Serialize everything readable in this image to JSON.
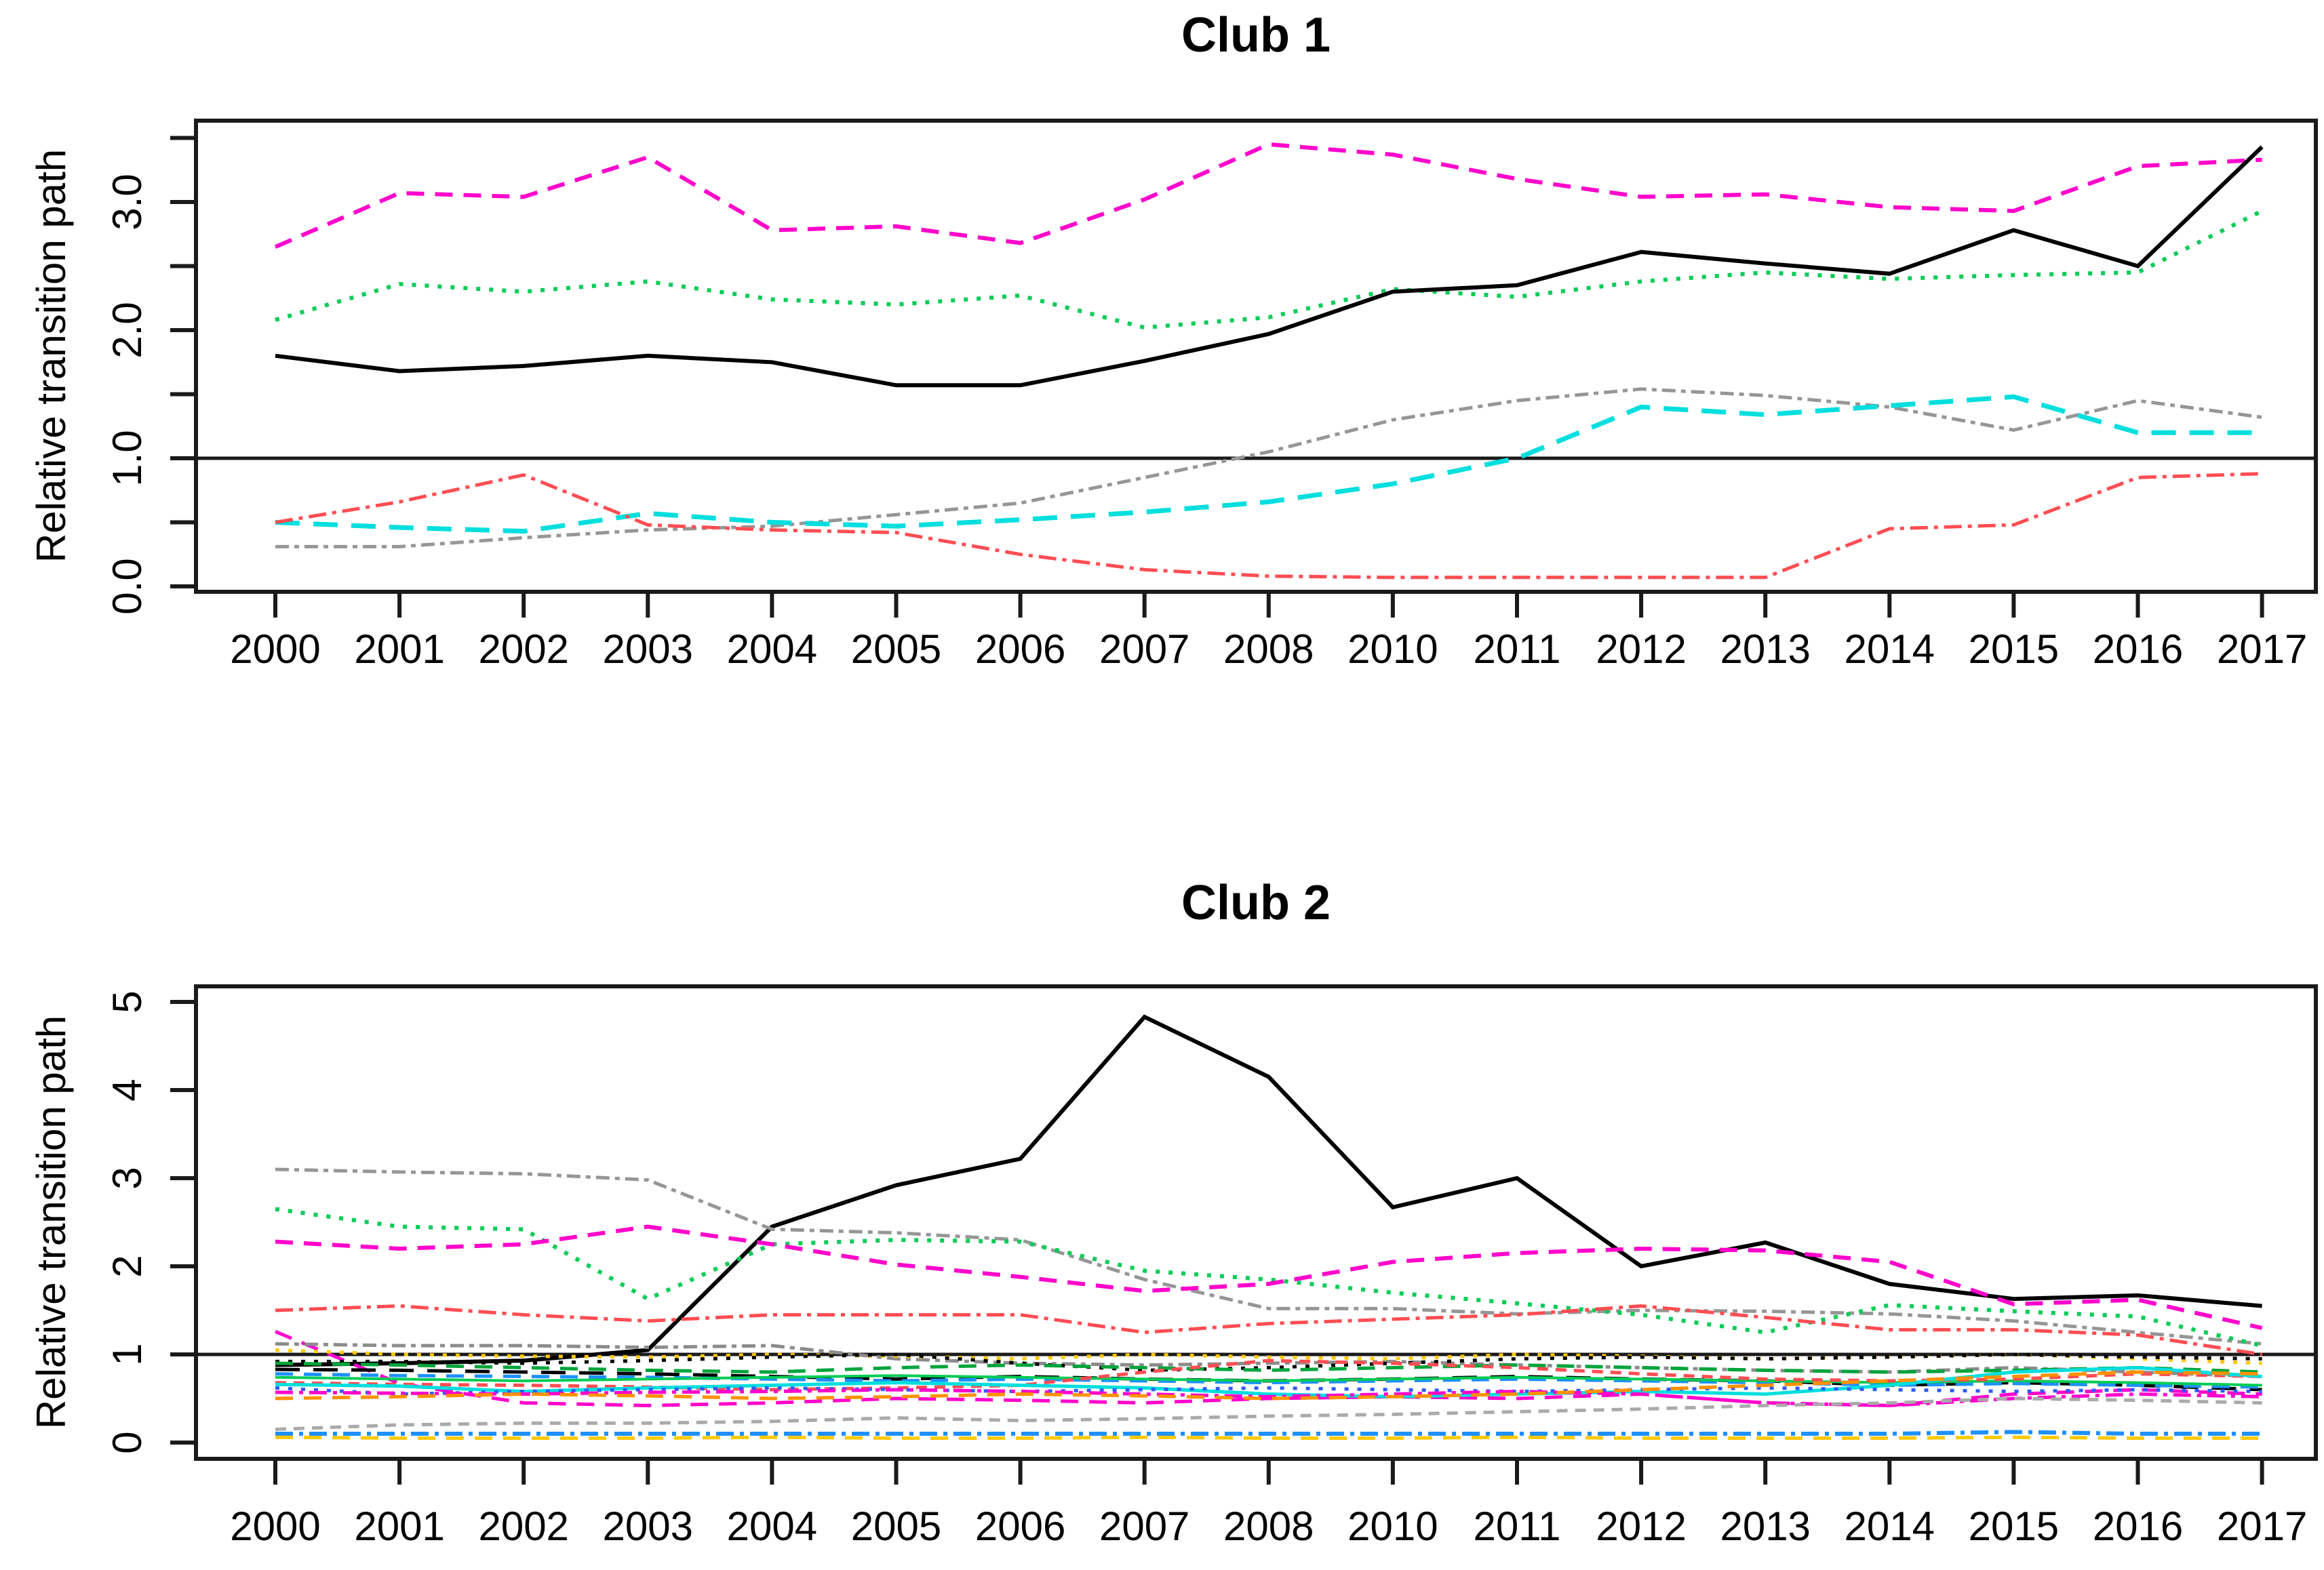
{
  "page": {
    "background": "#ffffff",
    "text_color": "#000000"
  },
  "chart_data": [
    {
      "type": "line",
      "title": "Club 1",
      "ylabel": "Relative transition path",
      "xlabel": "",
      "x_tick_labels": [
        "2000",
        "2001",
        "2002",
        "2003",
        "2004",
        "2005",
        "2006",
        "2007",
        "2008",
        "2010",
        "2011",
        "2012",
        "2013",
        "2014",
        "2015",
        "2016",
        "2017"
      ],
      "ylim": [
        0,
        3.6
      ],
      "y_ticks": [
        {
          "v": 0.0,
          "label": "0.0"
        },
        {
          "v": 0.5
        },
        {
          "v": 1.0,
          "label": "1.0"
        },
        {
          "v": 1.5
        },
        {
          "v": 2.0,
          "label": "2.0"
        },
        {
          "v": 2.5
        },
        {
          "v": 3.0,
          "label": "3.0"
        },
        {
          "v": 3.5
        }
      ],
      "reference_line_y": 1.0,
      "grid": false,
      "legend_position": "none",
      "series": [
        {
          "name": "magenta-dashed",
          "color": "#ff00cc",
          "dash": "dashed",
          "width": 6,
          "values": [
            2.65,
            3.07,
            3.04,
            3.35,
            2.78,
            2.81,
            2.68,
            3.02,
            3.45,
            3.37,
            3.18,
            3.04,
            3.06,
            2.96,
            2.93,
            3.28,
            3.33
          ]
        },
        {
          "name": "green-dotted",
          "color": "#00cc55",
          "dash": "dotted",
          "width": 6,
          "values": [
            2.08,
            2.36,
            2.3,
            2.38,
            2.24,
            2.2,
            2.27,
            2.02,
            2.1,
            2.32,
            2.26,
            2.38,
            2.45,
            2.4,
            2.43,
            2.45,
            2.93
          ]
        },
        {
          "name": "black-solid",
          "color": "#000000",
          "dash": "solid",
          "width": 6,
          "values": [
            1.8,
            1.68,
            1.72,
            1.8,
            1.75,
            1.57,
            1.57,
            1.76,
            1.97,
            2.3,
            2.35,
            2.61,
            2.52,
            2.44,
            2.78,
            2.5,
            3.43
          ]
        },
        {
          "name": "gray-dash-dot",
          "color": "#969696",
          "dash": "twodash",
          "width": 5,
          "values": [
            0.31,
            0.31,
            0.38,
            0.44,
            0.47,
            0.56,
            0.65,
            0.85,
            1.05,
            1.3,
            1.45,
            1.54,
            1.49,
            1.4,
            1.22,
            1.45,
            1.32
          ]
        },
        {
          "name": "cyan-long-dash",
          "color": "#00dede",
          "dash": "longdash",
          "width": 7,
          "values": [
            0.5,
            0.46,
            0.43,
            0.57,
            0.5,
            0.47,
            0.52,
            0.58,
            0.66,
            0.8,
            1.0,
            1.4,
            1.34,
            1.41,
            1.48,
            1.2,
            1.2
          ]
        },
        {
          "name": "red-dash-dot",
          "color": "#ff4d52",
          "dash": "dashdot",
          "width": 5,
          "values": [
            0.5,
            0.66,
            0.87,
            0.48,
            0.44,
            0.42,
            0.25,
            0.13,
            0.08,
            0.07,
            0.07,
            0.07,
            0.07,
            0.45,
            0.48,
            0.85,
            0.88
          ]
        }
      ]
    },
    {
      "type": "line",
      "title": "Club 2",
      "ylabel": "Relative transition path",
      "xlabel": "",
      "x_tick_labels": [
        "2000",
        "2001",
        "2002",
        "2003",
        "2004",
        "2005",
        "2006",
        "2007",
        "2008",
        "2010",
        "2011",
        "2012",
        "2013",
        "2014",
        "2015",
        "2016",
        "2017"
      ],
      "ylim": [
        0,
        5
      ],
      "y_ticks": [
        {
          "v": 0,
          "label": "0"
        },
        {
          "v": 1,
          "label": "1"
        },
        {
          "v": 2,
          "label": "2"
        },
        {
          "v": 3,
          "label": "3"
        },
        {
          "v": 4,
          "label": "4"
        },
        {
          "v": 5,
          "label": "5"
        }
      ],
      "reference_line_y": 1.0,
      "grid": false,
      "legend_position": "none",
      "series": [
        {
          "name": "black-solid",
          "color": "#000000",
          "dash": "solid",
          "width": 6,
          "values": [
            0.88,
            0.9,
            0.93,
            1.05,
            2.45,
            2.92,
            3.22,
            4.83,
            4.15,
            2.67,
            3.0,
            2.0,
            2.27,
            1.8,
            1.63,
            1.67,
            1.55
          ]
        },
        {
          "name": "gray-dash-dot",
          "color": "#969696",
          "dash": "twodash",
          "width": 5,
          "values": [
            3.1,
            3.07,
            3.05,
            2.98,
            2.42,
            2.38,
            2.3,
            1.85,
            1.52,
            1.52,
            1.46,
            1.5,
            1.49,
            1.46,
            1.38,
            1.25,
            1.12
          ]
        },
        {
          "name": "green-dotted",
          "color": "#00cc55",
          "dash": "dotted",
          "width": 6,
          "values": [
            2.65,
            2.45,
            2.42,
            1.63,
            2.25,
            2.3,
            2.28,
            1.95,
            1.85,
            1.7,
            1.58,
            1.45,
            1.25,
            1.56,
            1.49,
            1.43,
            1.1
          ]
        },
        {
          "name": "magenta-dashed",
          "color": "#ff00cc",
          "dash": "dashed",
          "width": 6,
          "values": [
            2.28,
            2.2,
            2.25,
            2.45,
            2.25,
            2.02,
            1.88,
            1.72,
            1.8,
            2.05,
            2.15,
            2.2,
            2.18,
            2.05,
            1.57,
            1.62,
            1.3
          ]
        },
        {
          "name": "salmon-dash-dot",
          "color": "#ff4d52",
          "dash": "dashdot",
          "width": 5,
          "values": [
            1.5,
            1.55,
            1.45,
            1.38,
            1.45,
            1.45,
            1.45,
            1.25,
            1.35,
            1.4,
            1.45,
            1.55,
            1.42,
            1.28,
            1.28,
            1.22,
            1.0
          ]
        },
        {
          "name": "magenta-dashed-2",
          "color": "#ff00cc",
          "dash": "dashed",
          "width": 5,
          "values": [
            1.26,
            0.67,
            0.45,
            0.42,
            0.45,
            0.5,
            0.48,
            0.45,
            0.5,
            0.52,
            0.5,
            0.55,
            0.45,
            0.42,
            0.55,
            0.6,
            0.55
          ]
        },
        {
          "name": "gray-two-dash",
          "color": "#8c8c8c",
          "dash": "twodash",
          "width": 5,
          "values": [
            1.12,
            1.1,
            1.1,
            1.08,
            1.1,
            0.95,
            0.9,
            0.88,
            0.9,
            0.92,
            0.88,
            0.85,
            0.82,
            0.8,
            0.85,
            0.8,
            0.75
          ]
        },
        {
          "name": "gold-dotted",
          "color": "#ffc800",
          "dash": "dotted",
          "width": 5,
          "values": [
            1.05,
            1.0,
            0.98,
            0.97,
            1.0,
            0.98,
            0.95,
            1.0,
            0.97,
            0.95,
            1.0,
            0.98,
            0.95,
            0.97,
            1.0,
            0.95,
            0.9
          ]
        },
        {
          "name": "black-dotted",
          "color": "#000000",
          "dash": "dotted",
          "width": 5,
          "values": [
            0.92,
            0.92,
            0.9,
            0.93,
            0.97,
            1.0,
            0.9,
            0.82,
            0.85,
            0.9,
            0.95,
            0.97,
            0.95,
            0.97,
            1.0,
            0.97,
            0.95
          ]
        },
        {
          "name": "green-dashed",
          "color": "#00a43c",
          "dash": "dashed",
          "width": 5,
          "values": [
            0.9,
            0.88,
            0.85,
            0.82,
            0.8,
            0.85,
            0.88,
            0.85,
            0.82,
            0.85,
            0.88,
            0.85,
            0.82,
            0.8,
            0.82,
            0.85,
            0.8
          ]
        },
        {
          "name": "black-long-dash",
          "color": "#000000",
          "dash": "longdash",
          "width": 5,
          "values": [
            0.83,
            0.82,
            0.8,
            0.78,
            0.75,
            0.72,
            0.75,
            0.72,
            0.7,
            0.72,
            0.75,
            0.72,
            0.7,
            0.65,
            0.68,
            0.65,
            0.6
          ]
        },
        {
          "name": "blue-dashed",
          "color": "#1e90ff",
          "dash": "dashed",
          "width": 5,
          "values": [
            0.78,
            0.76,
            0.75,
            0.74,
            0.72,
            0.7,
            0.72,
            0.7,
            0.68,
            0.7,
            0.72,
            0.7,
            0.68,
            0.65,
            0.67,
            0.65,
            0.63
          ]
        },
        {
          "name": "green-solid",
          "color": "#00cc55",
          "dash": "solid",
          "width": 4,
          "values": [
            0.74,
            0.72,
            0.7,
            0.72,
            0.74,
            0.76,
            0.74,
            0.72,
            0.7,
            0.72,
            0.74,
            0.72,
            0.7,
            0.68,
            0.7,
            0.68,
            0.65
          ]
        },
        {
          "name": "red-dashed",
          "color": "#ff4d52",
          "dash": "shortdash",
          "width": 5,
          "values": [
            0.68,
            0.66,
            0.65,
            0.63,
            0.6,
            0.62,
            0.65,
            0.8,
            0.93,
            0.9,
            0.85,
            0.78,
            0.72,
            0.7,
            0.72,
            0.78,
            0.75
          ]
        },
        {
          "name": "cyan-solid",
          "color": "#00dede",
          "dash": "solid",
          "width": 5,
          "values": [
            0.66,
            0.64,
            0.58,
            0.62,
            0.65,
            0.68,
            0.65,
            0.62,
            0.55,
            0.52,
            0.55,
            0.58,
            0.55,
            0.65,
            0.8,
            0.85,
            0.75
          ]
        },
        {
          "name": "blue-dotted",
          "color": "#2e5bff",
          "dash": "dotted",
          "width": 5,
          "values": [
            0.62,
            0.55,
            0.58,
            0.6,
            0.62,
            0.6,
            0.58,
            0.6,
            0.62,
            0.6,
            0.58,
            0.6,
            0.62,
            0.6,
            0.58,
            0.6,
            0.58
          ]
        },
        {
          "name": "magenta-dash-dot",
          "color": "#ff00cc",
          "dash": "dashdot",
          "width": 5,
          "values": [
            0.57,
            0.56,
            0.55,
            0.57,
            0.58,
            0.6,
            0.58,
            0.55,
            0.52,
            0.55,
            0.58,
            0.55,
            0.45,
            0.42,
            0.5,
            0.55,
            0.52
          ]
        },
        {
          "name": "orange-dashed",
          "color": "#ff9100",
          "dash": "dashed",
          "width": 5,
          "values": [
            0.5,
            0.52,
            0.55,
            0.53,
            0.5,
            0.52,
            0.55,
            0.53,
            0.5,
            0.52,
            0.55,
            0.6,
            0.65,
            0.7,
            0.75,
            0.8,
            0.78
          ]
        },
        {
          "name": "gray-short-dash",
          "color": "#aaaaaa",
          "dash": "shortdash",
          "width": 5,
          "values": [
            0.15,
            0.2,
            0.22,
            0.22,
            0.24,
            0.28,
            0.25,
            0.27,
            0.3,
            0.32,
            0.35,
            0.38,
            0.42,
            0.45,
            0.5,
            0.48,
            0.45
          ]
        },
        {
          "name": "blue-dash-dot-low",
          "color": "#1e90ff",
          "dash": "dashdot",
          "width": 6,
          "values": [
            0.1,
            0.1,
            0.1,
            0.1,
            0.1,
            0.1,
            0.1,
            0.1,
            0.1,
            0.1,
            0.1,
            0.1,
            0.1,
            0.1,
            0.12,
            0.1,
            0.1
          ]
        },
        {
          "name": "gold-dashed-low",
          "color": "#ffc800",
          "dash": "dashed",
          "width": 5,
          "values": [
            0.06,
            0.05,
            0.05,
            0.05,
            0.06,
            0.05,
            0.05,
            0.06,
            0.05,
            0.05,
            0.06,
            0.05,
            0.05,
            0.05,
            0.06,
            0.05,
            0.05
          ]
        }
      ]
    }
  ]
}
